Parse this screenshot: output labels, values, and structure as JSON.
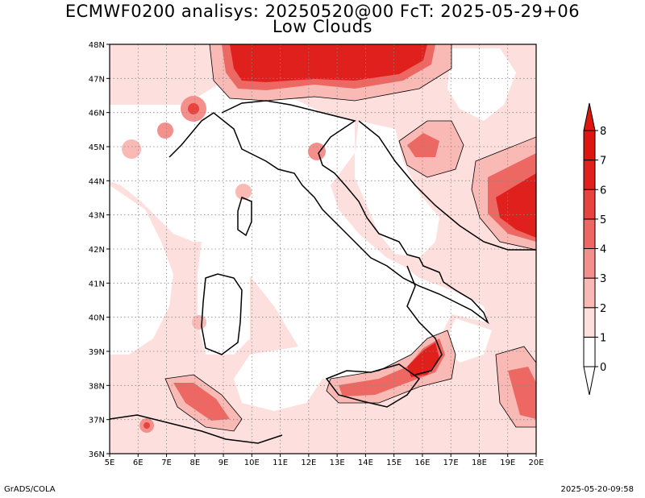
{
  "title": {
    "line1": "ECMWF0200 analisys: 20250520@00 FcT: 2025-05-29+06",
    "line2": "Low Clouds"
  },
  "footer": {
    "left": "GrADS/COLA",
    "right": "2025-05-20-09:58"
  },
  "map": {
    "lon_ticks": [
      "5E",
      "6E",
      "7E",
      "8E",
      "9E",
      "10E",
      "11E",
      "12E",
      "13E",
      "14E",
      "15E",
      "16E",
      "17E",
      "18E",
      "19E",
      "20E"
    ],
    "lat_ticks": [
      "36N",
      "37N",
      "38N",
      "39N",
      "40N",
      "41N",
      "42N",
      "43N",
      "44N",
      "45N",
      "46N",
      "47N",
      "48N"
    ],
    "grid": "dotted",
    "colors": {
      "level_0": "#ffffff",
      "level_1": "#fde0de",
      "level_2": "#f9b9b5",
      "level_3": "#f4908b",
      "level_4": "#ee6863",
      "level_5": "#e8433e",
      "level_6": "#e0201c",
      "level_7": "#dd1710"
    }
  },
  "colorbar": {
    "labels": [
      "0",
      "1",
      "2",
      "3",
      "4",
      "5",
      "6",
      "7",
      "8"
    ]
  }
}
